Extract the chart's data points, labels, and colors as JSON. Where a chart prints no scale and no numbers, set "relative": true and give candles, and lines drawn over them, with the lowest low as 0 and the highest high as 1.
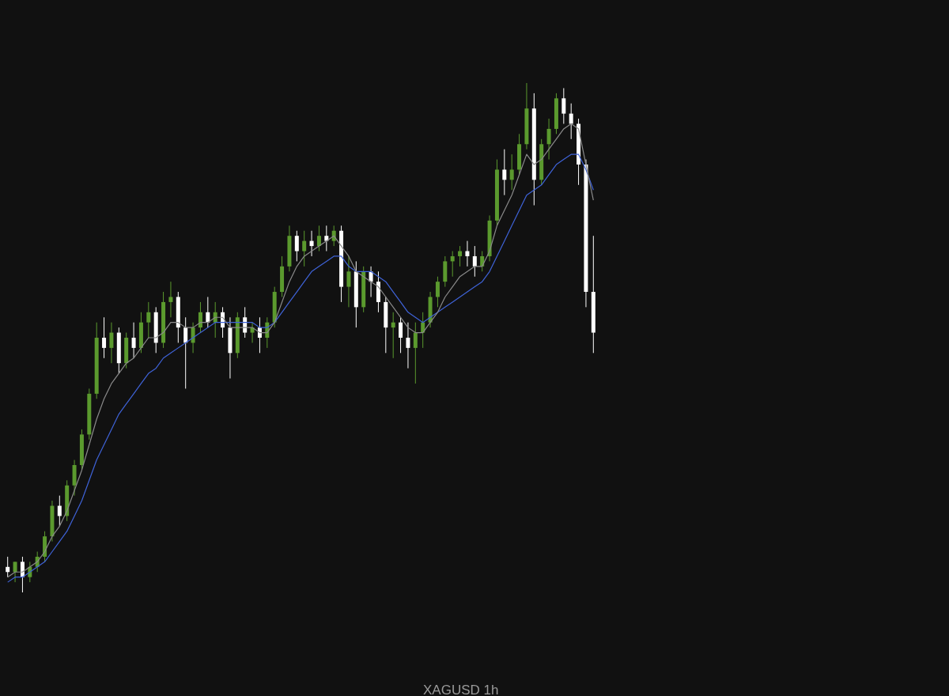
{
  "chart_data": {
    "type": "candlestick",
    "title": "XAGUSD   1h",
    "relative": true,
    "categories": [
      null,
      null,
      null,
      null,
      null,
      null,
      null,
      null,
      null,
      null,
      null,
      null,
      null,
      null,
      null,
      null,
      null,
      null,
      null,
      null,
      null,
      null,
      null,
      null,
      null,
      null,
      null,
      null,
      null,
      null,
      null,
      null,
      null,
      null,
      null,
      null,
      null,
      null,
      null,
      null,
      null,
      null,
      null,
      null,
      null,
      null,
      null,
      null,
      null,
      null,
      null,
      null,
      null,
      null,
      null,
      null,
      null,
      null,
      null,
      null,
      null,
      null,
      null,
      null,
      null,
      null,
      null,
      null,
      null,
      null,
      null,
      null,
      null,
      null,
      null,
      null,
      null,
      null,
      null,
      null
    ],
    "ohlc": [
      [
        0.05,
        0.07,
        0.03,
        0.04
      ],
      [
        0.04,
        0.06,
        0.02,
        0.06
      ],
      [
        0.06,
        0.07,
        0.0,
        0.03
      ],
      [
        0.03,
        0.06,
        0.02,
        0.05
      ],
      [
        0.05,
        0.08,
        0.04,
        0.07
      ],
      [
        0.07,
        0.12,
        0.06,
        0.11
      ],
      [
        0.11,
        0.18,
        0.1,
        0.17
      ],
      [
        0.17,
        0.19,
        0.13,
        0.15
      ],
      [
        0.15,
        0.22,
        0.14,
        0.21
      ],
      [
        0.21,
        0.26,
        0.19,
        0.25
      ],
      [
        0.25,
        0.32,
        0.24,
        0.31
      ],
      [
        0.31,
        0.4,
        0.3,
        0.39
      ],
      [
        0.39,
        0.53,
        0.38,
        0.5
      ],
      [
        0.5,
        0.54,
        0.46,
        0.48
      ],
      [
        0.48,
        0.53,
        0.45,
        0.51
      ],
      [
        0.51,
        0.52,
        0.43,
        0.45
      ],
      [
        0.45,
        0.51,
        0.44,
        0.5
      ],
      [
        0.5,
        0.53,
        0.46,
        0.48
      ],
      [
        0.48,
        0.55,
        0.47,
        0.53
      ],
      [
        0.53,
        0.57,
        0.5,
        0.55
      ],
      [
        0.55,
        0.56,
        0.47,
        0.49
      ],
      [
        0.49,
        0.59,
        0.48,
        0.57
      ],
      [
        0.57,
        0.61,
        0.54,
        0.58
      ],
      [
        0.58,
        0.59,
        0.49,
        0.52
      ],
      [
        0.52,
        0.54,
        0.4,
        0.49
      ],
      [
        0.49,
        0.53,
        0.47,
        0.52
      ],
      [
        0.52,
        0.57,
        0.51,
        0.55
      ],
      [
        0.55,
        0.58,
        0.52,
        0.53
      ],
      [
        0.53,
        0.57,
        0.5,
        0.55
      ],
      [
        0.55,
        0.56,
        0.5,
        0.52
      ],
      [
        0.52,
        0.54,
        0.42,
        0.47
      ],
      [
        0.47,
        0.55,
        0.46,
        0.54
      ],
      [
        0.54,
        0.56,
        0.5,
        0.51
      ],
      [
        0.51,
        0.53,
        0.49,
        0.52
      ],
      [
        0.52,
        0.54,
        0.47,
        0.5
      ],
      [
        0.5,
        0.54,
        0.48,
        0.53
      ],
      [
        0.53,
        0.6,
        0.52,
        0.59
      ],
      [
        0.59,
        0.66,
        0.58,
        0.64
      ],
      [
        0.64,
        0.72,
        0.63,
        0.7
      ],
      [
        0.7,
        0.71,
        0.65,
        0.67
      ],
      [
        0.67,
        0.71,
        0.64,
        0.69
      ],
      [
        0.69,
        0.71,
        0.66,
        0.68
      ],
      [
        0.68,
        0.72,
        0.67,
        0.7
      ],
      [
        0.7,
        0.72,
        0.67,
        0.69
      ],
      [
        0.69,
        0.72,
        0.68,
        0.71
      ],
      [
        0.71,
        0.72,
        0.57,
        0.6
      ],
      [
        0.6,
        0.66,
        0.56,
        0.63
      ],
      [
        0.63,
        0.65,
        0.52,
        0.56
      ],
      [
        0.56,
        0.64,
        0.55,
        0.63
      ],
      [
        0.63,
        0.64,
        0.58,
        0.61
      ],
      [
        0.61,
        0.63,
        0.55,
        0.57
      ],
      [
        0.57,
        0.58,
        0.47,
        0.52
      ],
      [
        0.52,
        0.55,
        0.46,
        0.53
      ],
      [
        0.53,
        0.54,
        0.47,
        0.5
      ],
      [
        0.5,
        0.53,
        0.44,
        0.48
      ],
      [
        0.48,
        0.53,
        0.41,
        0.51
      ],
      [
        0.51,
        0.55,
        0.48,
        0.53
      ],
      [
        0.53,
        0.59,
        0.52,
        0.58
      ],
      [
        0.58,
        0.62,
        0.56,
        0.61
      ],
      [
        0.61,
        0.66,
        0.6,
        0.65
      ],
      [
        0.65,
        0.67,
        0.62,
        0.66
      ],
      [
        0.66,
        0.68,
        0.64,
        0.67
      ],
      [
        0.67,
        0.69,
        0.64,
        0.66
      ],
      [
        0.66,
        0.68,
        0.62,
        0.64
      ],
      [
        0.64,
        0.67,
        0.63,
        0.66
      ],
      [
        0.66,
        0.74,
        0.65,
        0.73
      ],
      [
        0.73,
        0.85,
        0.72,
        0.83
      ],
      [
        0.83,
        0.87,
        0.78,
        0.81
      ],
      [
        0.81,
        0.86,
        0.79,
        0.83
      ],
      [
        0.83,
        0.9,
        0.82,
        0.88
      ],
      [
        0.88,
        1.0,
        0.87,
        0.95
      ],
      [
        0.95,
        0.98,
        0.76,
        0.81
      ],
      [
        0.81,
        0.89,
        0.8,
        0.88
      ],
      [
        0.88,
        0.93,
        0.85,
        0.91
      ],
      [
        0.91,
        0.98,
        0.9,
        0.97
      ],
      [
        0.97,
        0.99,
        0.92,
        0.94
      ],
      [
        0.94,
        0.96,
        0.89,
        0.92
      ],
      [
        0.92,
        0.93,
        0.8,
        0.84
      ],
      [
        0.84,
        0.85,
        0.56,
        0.59
      ],
      [
        0.59,
        0.7,
        0.47,
        0.51
      ]
    ],
    "colors": [
      "#ffffff",
      "#5b9a2e",
      "#ffffff",
      "#5b9a2e",
      "#5b9a2e",
      "#5b9a2e",
      "#5b9a2e",
      "#ffffff",
      "#5b9a2e",
      "#5b9a2e",
      "#5b9a2e",
      "#5b9a2e",
      "#5b9a2e",
      "#ffffff",
      "#5b9a2e",
      "#ffffff",
      "#5b9a2e",
      "#ffffff",
      "#5b9a2e",
      "#5b9a2e",
      "#ffffff",
      "#5b9a2e",
      "#5b9a2e",
      "#ffffff",
      "#ffffff",
      "#5b9a2e",
      "#5b9a2e",
      "#ffffff",
      "#5b9a2e",
      "#ffffff",
      "#ffffff",
      "#5b9a2e",
      "#ffffff",
      "#5b9a2e",
      "#ffffff",
      "#5b9a2e",
      "#5b9a2e",
      "#5b9a2e",
      "#5b9a2e",
      "#ffffff",
      "#5b9a2e",
      "#ffffff",
      "#5b9a2e",
      "#ffffff",
      "#5b9a2e",
      "#ffffff",
      "#5b9a2e",
      "#ffffff",
      "#5b9a2e",
      "#ffffff",
      "#ffffff",
      "#ffffff",
      "#5b9a2e",
      "#ffffff",
      "#ffffff",
      "#5b9a2e",
      "#5b9a2e",
      "#5b9a2e",
      "#5b9a2e",
      "#5b9a2e",
      "#5b9a2e",
      "#5b9a2e",
      "#ffffff",
      "#ffffff",
      "#5b9a2e",
      "#5b9a2e",
      "#5b9a2e",
      "#ffffff",
      "#5b9a2e",
      "#5b9a2e",
      "#5b9a2e",
      "#ffffff",
      "#5b9a2e",
      "#5b9a2e",
      "#5b9a2e",
      "#ffffff",
      "#ffffff",
      "#ffffff",
      "#ffffff",
      "#ffffff"
    ],
    "series": [
      {
        "type": "line",
        "color": "#3f63d8",
        "values": [
          0.02,
          0.03,
          0.03,
          0.04,
          0.05,
          0.06,
          0.08,
          0.1,
          0.12,
          0.15,
          0.18,
          0.22,
          0.26,
          0.29,
          0.32,
          0.35,
          0.37,
          0.39,
          0.41,
          0.43,
          0.44,
          0.46,
          0.47,
          0.48,
          0.49,
          0.5,
          0.51,
          0.52,
          0.53,
          0.53,
          0.53,
          0.53,
          0.53,
          0.53,
          0.52,
          0.52,
          0.53,
          0.55,
          0.57,
          0.59,
          0.61,
          0.63,
          0.64,
          0.65,
          0.66,
          0.66,
          0.64,
          0.63,
          0.63,
          0.63,
          0.62,
          0.61,
          0.59,
          0.57,
          0.55,
          0.54,
          0.53,
          0.54,
          0.55,
          0.56,
          0.57,
          0.58,
          0.59,
          0.6,
          0.61,
          0.63,
          0.66,
          0.69,
          0.72,
          0.75,
          0.78,
          0.79,
          0.8,
          0.82,
          0.84,
          0.85,
          0.86,
          0.86,
          0.83,
          0.79
        ]
      },
      {
        "type": "line",
        "color": "#8a8a8a",
        "values": [
          0.03,
          0.04,
          0.04,
          0.05,
          0.06,
          0.08,
          0.11,
          0.13,
          0.16,
          0.2,
          0.24,
          0.29,
          0.34,
          0.38,
          0.41,
          0.43,
          0.45,
          0.46,
          0.48,
          0.5,
          0.5,
          0.51,
          0.53,
          0.53,
          0.52,
          0.52,
          0.53,
          0.53,
          0.54,
          0.54,
          0.52,
          0.52,
          0.52,
          0.52,
          0.51,
          0.51,
          0.53,
          0.57,
          0.61,
          0.64,
          0.66,
          0.67,
          0.68,
          0.69,
          0.7,
          0.68,
          0.66,
          0.63,
          0.62,
          0.61,
          0.6,
          0.58,
          0.56,
          0.54,
          0.52,
          0.51,
          0.51,
          0.53,
          0.55,
          0.58,
          0.6,
          0.62,
          0.63,
          0.64,
          0.64,
          0.67,
          0.72,
          0.75,
          0.78,
          0.82,
          0.86,
          0.84,
          0.85,
          0.87,
          0.89,
          0.91,
          0.92,
          0.91,
          0.84,
          0.77
        ]
      }
    ]
  }
}
